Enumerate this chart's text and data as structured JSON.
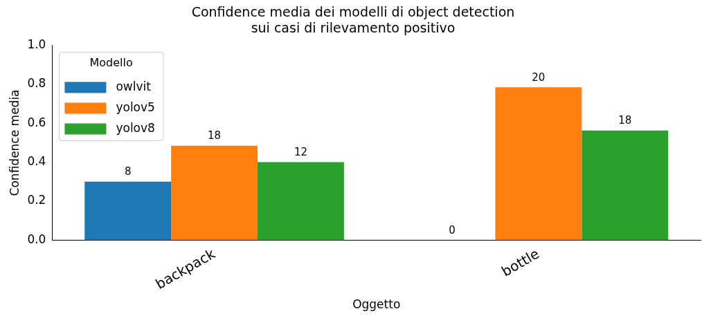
{
  "chart_data": {
    "type": "bar",
    "title": "Confidence media dei modelli di object detection\nsui casi di rilevamento positivo",
    "xlabel": "Oggetto",
    "ylabel": "Confidence media",
    "legend_title": "Modello",
    "legend": "top left",
    "categories": [
      "backpack",
      "bottle"
    ],
    "series": [
      {
        "name": "owlvit",
        "color": "#1f77b4",
        "values": [
          0.3,
          0
        ]
      },
      {
        "name": "yolov5",
        "color": "#ff7f0e",
        "values": [
          0.485,
          0.785
        ]
      },
      {
        "name": "yolov8",
        "color": "#2ca02c",
        "values": [
          0.4,
          0.563
        ]
      }
    ],
    "annotations": [
      "8",
      "18",
      "12",
      "0",
      "20",
      "18"
    ],
    "grid": false,
    "ylim": [
      0,
      1
    ],
    "yticks": [
      {
        "value": 0,
        "label": "0.0"
      },
      0.2,
      0.4,
      0.6,
      0.8,
      {
        "value": 1,
        "label": "1.0"
      }
    ]
  }
}
